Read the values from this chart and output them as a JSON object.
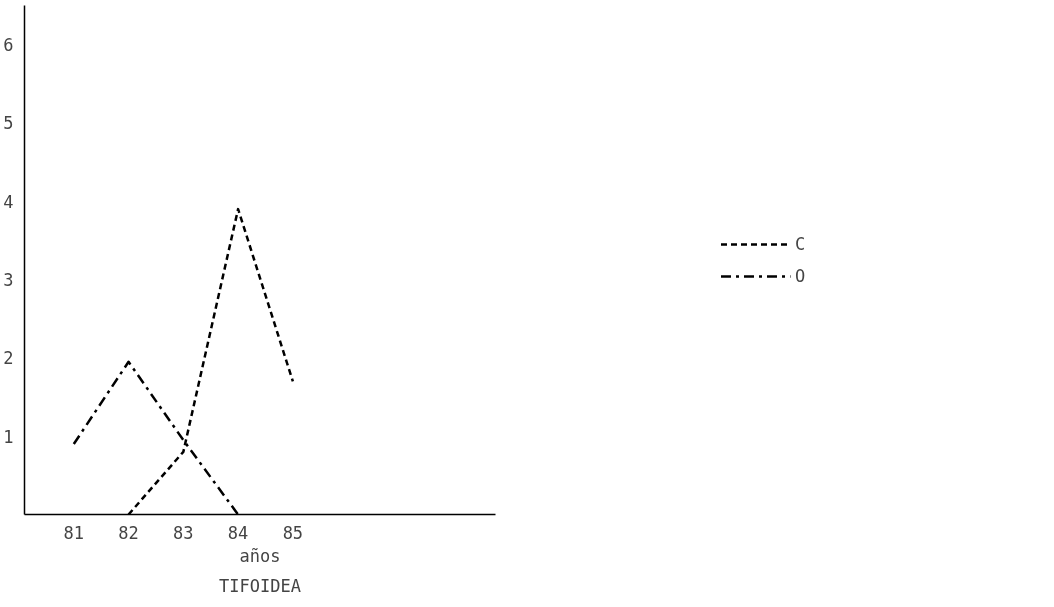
{
  "chart_data": {
    "type": "line",
    "title": "TIFOIDEA",
    "xlabel": "años",
    "x": [
      81,
      82,
      83,
      84,
      85
    ],
    "series": [
      {
        "name": "C",
        "color": "#000000",
        "line_style": "dashed",
        "values": [
          null,
          0,
          0.8,
          3.9,
          1.7
        ]
      },
      {
        "name": "O",
        "color": "#000000",
        "line_style": "dashdot",
        "values": [
          0.9,
          1.95,
          0.95,
          0,
          null
        ]
      }
    ],
    "xlim": [
      80.1,
      88.7
    ],
    "ylim": [
      0,
      6.5
    ],
    "xticks": [
      81,
      82,
      83,
      84,
      85
    ],
    "yticks": [
      1,
      2,
      3,
      4,
      5,
      6
    ],
    "grid": false,
    "legend": "right",
    "marker": "none"
  }
}
